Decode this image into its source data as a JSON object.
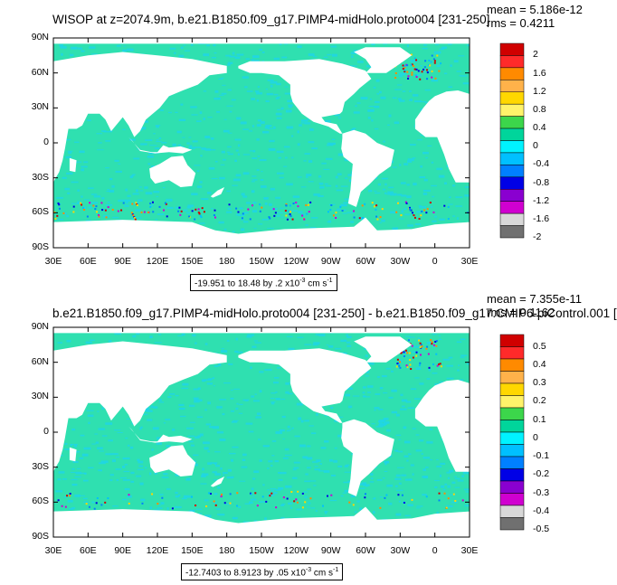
{
  "panels": [
    {
      "title": "WISOP at z=2074.9m, b.e21.B1850.f09_g17.PIMP4-midHolo.proto004 [231-250]",
      "mean": "mean = 5.186e-12",
      "rms": "rms = 0.4211",
      "range_label": "-19.951 to 18.48 by .2 x10",
      "range_exp": "-3",
      "range_units": " cm s",
      "range_units_exp": "-1",
      "colorbar_labels": [
        "2",
        "1.6",
        "1.2",
        "0.8",
        "0.4",
        "0",
        "-0.4",
        "-0.8",
        "-1.2",
        "-1.6",
        "-2"
      ]
    },
    {
      "title": "b.e21.B1850.f09_g17.PIMP4-midHolo.proto004 [231-250] - b.e21.B1850.f09_g17.CMIP6-piControl.001 [",
      "mean": "mean = 7.355e-11",
      "rms": "rms = 0.1162",
      "range_label": "-12.7403 to 8.9123 by .05 x10",
      "range_exp": "-3",
      "range_units": " cm s",
      "range_units_exp": "-1",
      "colorbar_labels": [
        "0.5",
        "0.4",
        "0.3",
        "0.2",
        "0.1",
        "0",
        "-0.1",
        "-0.2",
        "-0.3",
        "-0.4",
        "-0.5"
      ]
    }
  ],
  "axes": {
    "lat_labels": [
      "90N",
      "60N",
      "30N",
      "0",
      "30S",
      "60S",
      "90S"
    ],
    "lon_labels": [
      "30E",
      "60E",
      "90E",
      "120E",
      "150E",
      "180",
      "150W",
      "120W",
      "90W",
      "60W",
      "30W",
      "0",
      "30E"
    ]
  },
  "colors": {
    "ocean": "#2fe0b0",
    "ocean_alt": "#1fd5e8",
    "land": "#ffffff",
    "colorbar": [
      "#d00000",
      "#ff2a2a",
      "#ff8a00",
      "#ffb24a",
      "#ffd700",
      "#fff36a",
      "#3cd64b",
      "#00d59b",
      "#00f3ff",
      "#00c0ff",
      "#0080ff",
      "#0000e6",
      "#8a00d0",
      "#d000d0",
      "#d8d8d8",
      "#707070"
    ]
  }
}
